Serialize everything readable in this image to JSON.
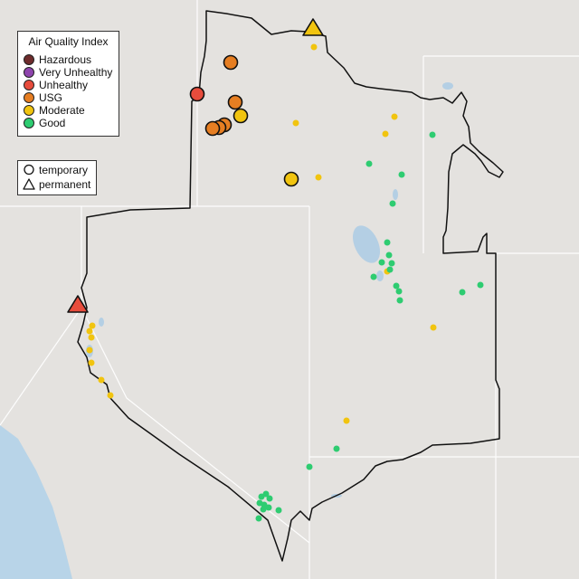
{
  "legend_aqi": {
    "title": "Air Quality Index",
    "items": [
      {
        "label": "Hazardous",
        "color": "#6e2c2c"
      },
      {
        "label": "Very Unhealthy",
        "color": "#8e44ad"
      },
      {
        "label": "Unhealthy",
        "color": "#e74c3c"
      },
      {
        "label": "USG",
        "color": "#e67e22"
      },
      {
        "label": "Moderate",
        "color": "#f1c40f"
      },
      {
        "label": "Good",
        "color": "#2ecc71"
      }
    ]
  },
  "legend_type": {
    "items": [
      {
        "label": "temporary",
        "icon": "circle-icon"
      },
      {
        "label": "permanent",
        "icon": "triangle-icon"
      }
    ]
  },
  "colors": {
    "land": "#e4e2df",
    "water": "#a9cde6",
    "boundary": "#000000"
  }
}
